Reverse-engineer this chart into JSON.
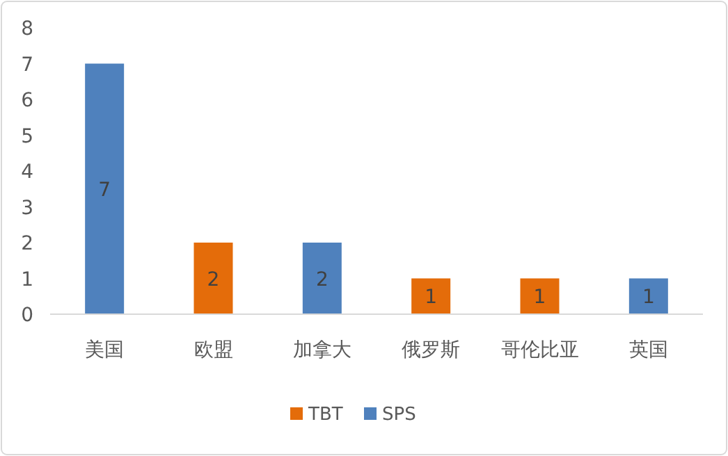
{
  "chart_data": {
    "type": "bar",
    "stacked": true,
    "categories": [
      "美国",
      "欧盟",
      "加拿大",
      "俄罗斯",
      "哥伦比亚",
      "英国"
    ],
    "series": [
      {
        "name": "TBT",
        "color": "#e46c0a",
        "values": [
          null,
          2,
          null,
          1,
          1,
          null
        ]
      },
      {
        "name": "SPS",
        "color": "#4f81bd",
        "values": [
          7,
          null,
          2,
          null,
          null,
          1
        ]
      }
    ],
    "ylim": [
      0,
      8
    ],
    "yticks": [
      0,
      1,
      2,
      3,
      4,
      5,
      6,
      7,
      8
    ],
    "grid": false,
    "legend": "bottom",
    "data_labels": true
  }
}
